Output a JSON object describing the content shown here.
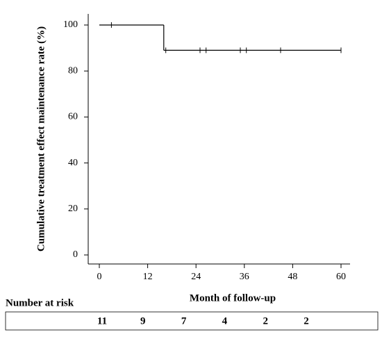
{
  "chart_data": {
    "type": "step",
    "y_label": "Cumulative treatment effect maintenance rate (%)",
    "x_label": "Month of follow-up",
    "xlim": [
      0,
      60
    ],
    "xticks": [
      0,
      12,
      24,
      36,
      48,
      60
    ],
    "ylim": [
      0,
      100
    ],
    "yticks": [
      0,
      20,
      40,
      60,
      80,
      100
    ],
    "series": [
      {
        "color": "#000000",
        "x": [
          0,
          16,
          60
        ],
        "values": [
          100,
          89,
          89
        ]
      }
    ],
    "censored": {
      "x": [
        3,
        16.5,
        25,
        26.5,
        35,
        36.5,
        45,
        60
      ],
      "values": [
        100,
        89,
        89,
        89,
        89,
        89,
        89,
        89
      ]
    },
    "number_at_risk": {
      "title": "Number at risk",
      "values": [
        11,
        9,
        7,
        4,
        2,
        2
      ]
    }
  }
}
